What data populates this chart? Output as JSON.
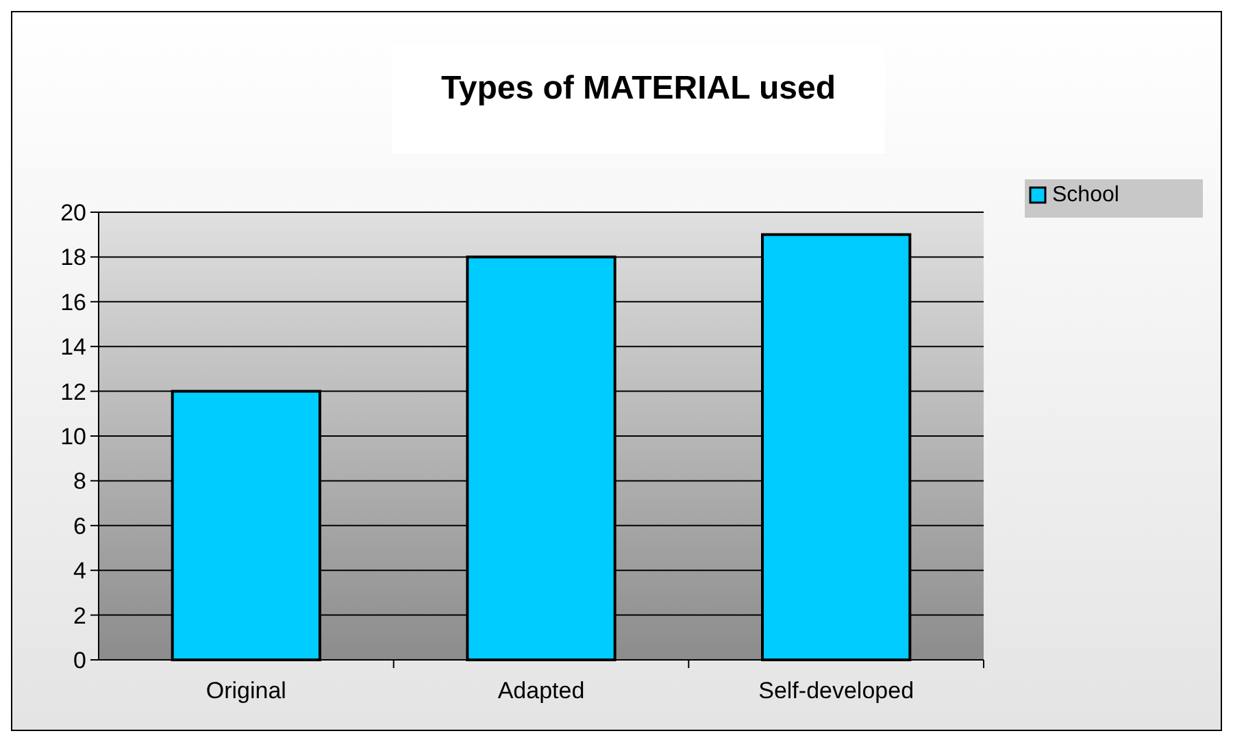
{
  "chart_data": {
    "type": "bar",
    "title": "Types of MATERIAL used",
    "categories": [
      "Original",
      "Adapted",
      "Self-developed"
    ],
    "series": [
      {
        "name": "School",
        "color": "#00ccff",
        "values": [
          12,
          18,
          19
        ]
      }
    ],
    "ylim": [
      0,
      20
    ],
    "yticks": [
      0,
      2,
      4,
      6,
      8,
      10,
      12,
      14,
      16,
      18,
      20
    ],
    "grid": "y",
    "legend": "right"
  }
}
